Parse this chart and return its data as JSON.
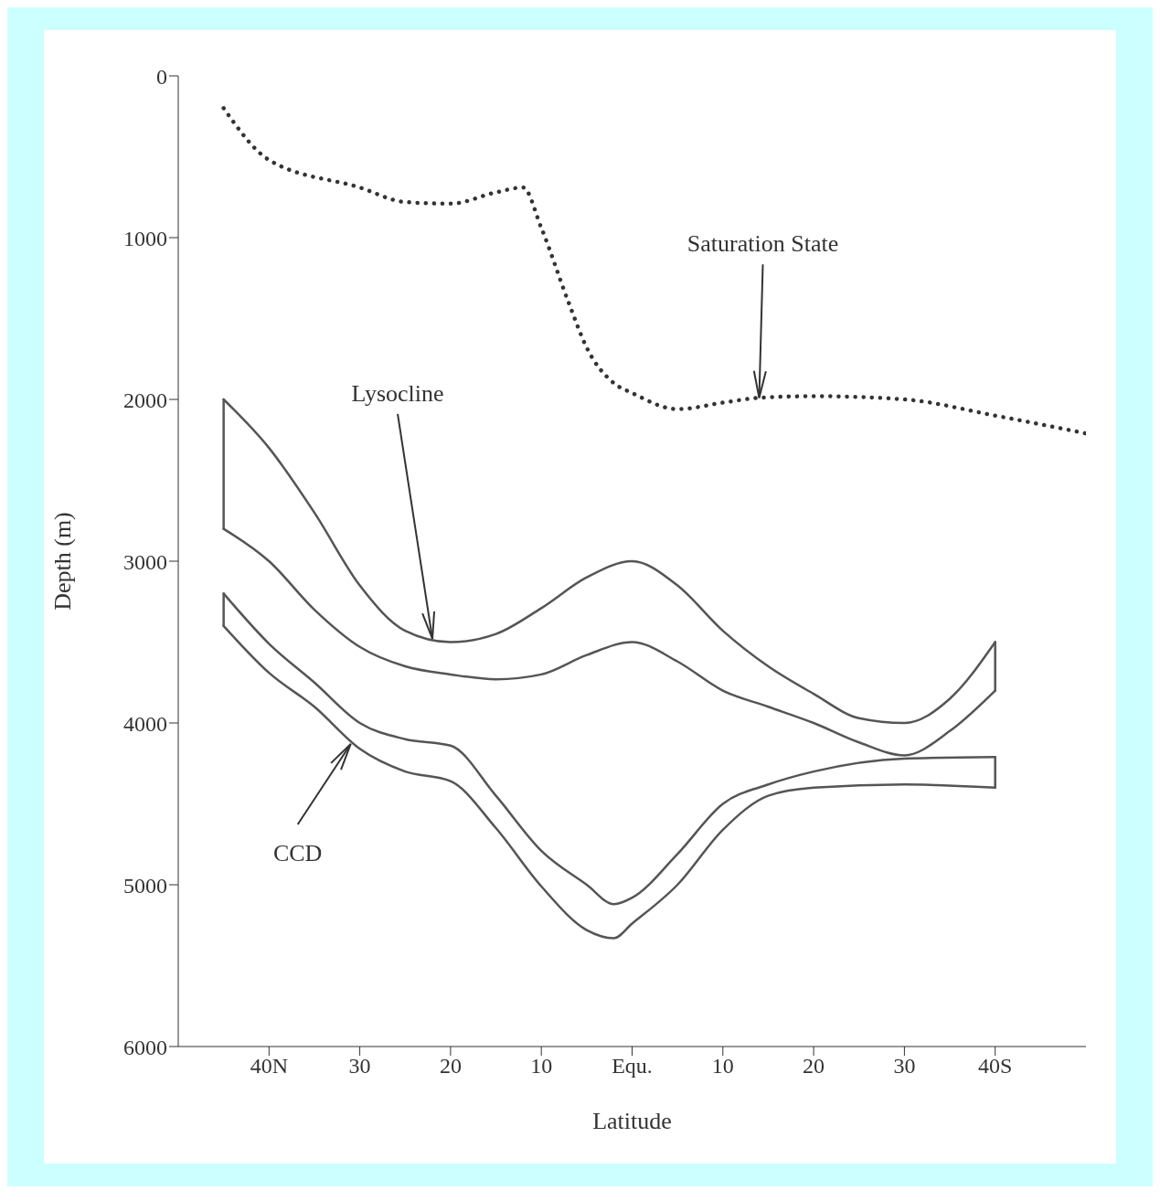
{
  "chart_data": {
    "type": "line",
    "xlabel": "Latitude",
    "ylabel": "Depth (m)",
    "xlim": [
      -50,
      50
    ],
    "xticks": [
      {
        "value": -40,
        "label": "40N"
      },
      {
        "value": -30,
        "label": "30"
      },
      {
        "value": -20,
        "label": "20"
      },
      {
        "value": -10,
        "label": "10"
      },
      {
        "value": 0,
        "label": "Equ."
      },
      {
        "value": 10,
        "label": "10"
      },
      {
        "value": 20,
        "label": "20"
      },
      {
        "value": 30,
        "label": "30"
      },
      {
        "value": 40,
        "label": "40S"
      }
    ],
    "ylim": [
      6000,
      0
    ],
    "yticks": [
      0,
      1000,
      2000,
      3000,
      4000,
      5000,
      6000
    ],
    "series": [
      {
        "type": "line",
        "line_style": "dotted",
        "color": "#333333",
        "x": [
          -45,
          -40,
          -30,
          -25,
          -20,
          -15,
          -12,
          -10,
          -7,
          -5,
          -2,
          0,
          5,
          10,
          14,
          20,
          30,
          40,
          50
        ],
        "values": [
          200,
          520,
          690,
          780,
          790,
          720,
          690,
          940,
          1400,
          1680,
          1900,
          1960,
          2060,
          2020,
          1990,
          1980,
          2000,
          2100,
          2210
        ]
      },
      {
        "type": "line",
        "line_style": "solid",
        "color": "#555555",
        "x": [
          -45,
          -40,
          -35,
          -30,
          -25,
          -20,
          -15,
          -10,
          -5,
          0,
          5,
          10,
          15,
          20,
          25,
          30,
          35,
          40
        ],
        "values": [
          2000,
          2300,
          2700,
          3150,
          3430,
          3500,
          3450,
          3290,
          3100,
          3000,
          3150,
          3430,
          3650,
          3820,
          3970,
          4000,
          3850,
          3500
        ]
      },
      {
        "type": "line",
        "line_style": "solid",
        "color": "#555555",
        "x": [
          -45,
          -40,
          -35,
          -30,
          -25,
          -20,
          -15,
          -10,
          -5,
          0,
          5,
          10,
          15,
          20,
          25,
          30,
          35,
          40
        ],
        "values": [
          2800,
          3000,
          3300,
          3530,
          3650,
          3700,
          3730,
          3700,
          3580,
          3500,
          3620,
          3800,
          3900,
          4000,
          4120,
          4200,
          4050,
          3800
        ]
      },
      {
        "type": "line",
        "line_style": "solid",
        "color": "#555555",
        "x": [
          -45,
          -45
        ],
        "values": [
          2000,
          2800
        ]
      },
      {
        "type": "line",
        "line_style": "solid",
        "color": "#555555",
        "x": [
          40,
          40
        ],
        "values": [
          3500,
          3800
        ]
      },
      {
        "type": "line",
        "line_style": "solid",
        "color": "#555555",
        "x": [
          -45,
          -40,
          -35,
          -30,
          -25,
          -20,
          -15,
          -10,
          -5,
          -2,
          0,
          5,
          10,
          15,
          20,
          30,
          40
        ],
        "values": [
          3200,
          3510,
          3750,
          4000,
          4100,
          4140,
          4450,
          4790,
          5000,
          5120,
          5080,
          4810,
          4500,
          4380,
          4300,
          4220,
          4210
        ]
      },
      {
        "type": "line",
        "line_style": "solid",
        "color": "#555555",
        "x": [
          -45,
          -40,
          -35,
          -30,
          -25,
          -20,
          -15,
          -10,
          -5,
          -2,
          0,
          5,
          10,
          15,
          20,
          30,
          40
        ],
        "values": [
          3400,
          3690,
          3900,
          4160,
          4300,
          4360,
          4650,
          5010,
          5280,
          5330,
          5240,
          5000,
          4660,
          4450,
          4400,
          4380,
          4400
        ]
      },
      {
        "type": "line",
        "line_style": "solid",
        "color": "#555555",
        "x": [
          -45,
          -45
        ],
        "values": [
          3200,
          3400
        ]
      },
      {
        "type": "line",
        "line_style": "solid",
        "color": "#555555",
        "x": [
          40,
          40
        ],
        "values": [
          4210,
          4400
        ]
      }
    ],
    "annotations": [
      {
        "text": "Saturation State",
        "x": 14,
        "y": 1990
      },
      {
        "text": "Lysocline",
        "x": -22,
        "y": 3480
      },
      {
        "text": "CCD",
        "x": -31,
        "y": 4130
      }
    ]
  }
}
